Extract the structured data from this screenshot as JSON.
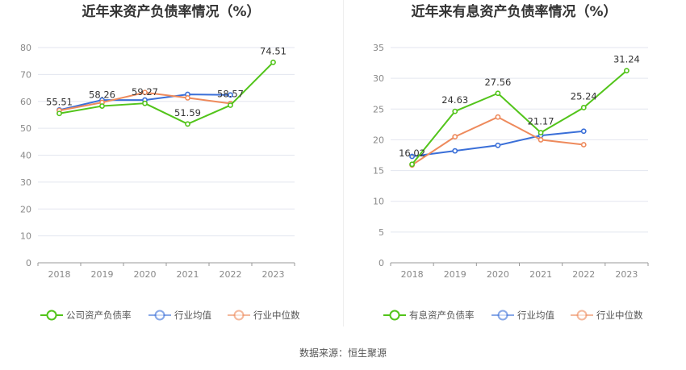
{
  "source_label": "数据来源：恒生聚源",
  "chart_data": [
    {
      "type": "line",
      "title": "近年来资产负债率情况（%）",
      "x": [
        "2018",
        "2019",
        "2020",
        "2021",
        "2022",
        "2023"
      ],
      "ylim": [
        0,
        80
      ],
      "yticks": [
        0,
        10,
        20,
        30,
        40,
        50,
        60,
        70,
        80
      ],
      "grid": true,
      "legend_position": "bottom-center",
      "series": [
        {
          "name": "公司资产负债率",
          "color": "#52c41a",
          "values": [
            55.51,
            58.26,
            59.27,
            51.59,
            58.57,
            74.51
          ],
          "labels": [
            "55.51",
            "58.26",
            "59.27",
            "51.59",
            "58.57",
            "74.51"
          ]
        },
        {
          "name": "行业均值",
          "color": "#3a6fd8",
          "values": [
            56.8,
            60.5,
            60.5,
            62.6,
            62.4,
            null
          ]
        },
        {
          "name": "行业中位数",
          "color": "#ee8a5c",
          "values": [
            56.6,
            59.6,
            63.3,
            61.3,
            59.2,
            null
          ]
        }
      ]
    },
    {
      "type": "line",
      "title": "近年来有息资产负债率情况（%）",
      "x": [
        "2018",
        "2019",
        "2020",
        "2021",
        "2022",
        "2023"
      ],
      "ylim": [
        0,
        35
      ],
      "yticks": [
        0,
        5,
        10,
        15,
        20,
        25,
        30,
        35
      ],
      "grid": true,
      "legend_position": "bottom-center",
      "series": [
        {
          "name": "有息资产负债率",
          "color": "#52c41a",
          "values": [
            16.02,
            24.63,
            27.56,
            21.17,
            25.24,
            31.24
          ],
          "labels": [
            "16.02",
            "24.63",
            "27.56",
            "21.17",
            "25.24",
            "31.24"
          ]
        },
        {
          "name": "行业均值",
          "color": "#3a6fd8",
          "values": [
            17.3,
            18.2,
            19.1,
            20.7,
            21.4,
            null
          ]
        },
        {
          "name": "行业中位数",
          "color": "#ee8a5c",
          "values": [
            15.9,
            20.5,
            23.7,
            20.0,
            19.2,
            null
          ]
        }
      ]
    }
  ]
}
